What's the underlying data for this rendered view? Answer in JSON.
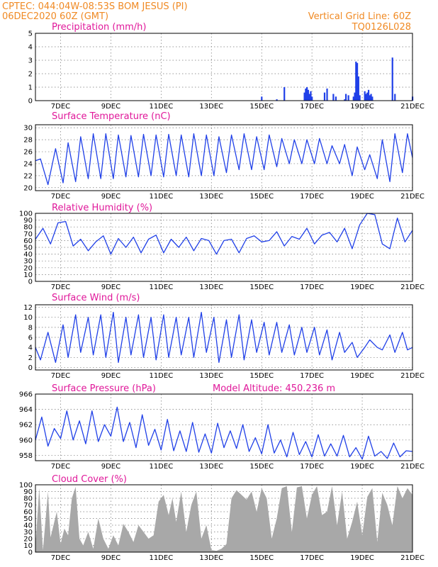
{
  "header": {
    "left_line1": "CPTEC:   044:04W-08:53S   BOM JESUS (PI)",
    "left_line2": "06DEC2020 60Z (GMT)",
    "right_line1": "Vertical Grid Line: 60Z",
    "right_line2": "TQ0126L028"
  },
  "colors": {
    "header": "#f08a24",
    "title": "#e0189a",
    "line": "#2040e8",
    "cloud": "#a8a8a8"
  },
  "x_axis": {
    "labels": [
      "7DEC",
      "9DEC",
      "11DEC",
      "13DEC",
      "15DEC",
      "17DEC",
      "19DEC",
      "21DEC"
    ],
    "label_positions_day": [
      7,
      9,
      11,
      13,
      15,
      17,
      19,
      21
    ],
    "range_day": [
      6.0,
      21.0
    ]
  },
  "chart_data": [
    {
      "type": "bar",
      "title": "Precipitation (mm/h)",
      "ylim": [
        0,
        5
      ],
      "yticks": [
        0,
        1,
        2,
        3,
        4,
        5
      ],
      "x": [
        15.0,
        15.6,
        15.9,
        16.7,
        16.75,
        16.8,
        16.85,
        16.9,
        16.95,
        17.0,
        17.5,
        17.6,
        17.85,
        17.95,
        18.3,
        18.35,
        18.45,
        18.65,
        18.7,
        18.75,
        18.8,
        18.85,
        18.9,
        19.1,
        19.15,
        19.2,
        19.25,
        19.3,
        19.35,
        19.4,
        20.2,
        20.3,
        21.0
      ],
      "values": [
        0.3,
        0.1,
        1.0,
        0.6,
        0.9,
        1.0,
        0.8,
        0.5,
        0.7,
        0.3,
        0.6,
        0.9,
        0.5,
        0.3,
        0.1,
        0.5,
        0.4,
        0.3,
        0.6,
        2.9,
        2.8,
        1.8,
        0.4,
        0.7,
        0.5,
        0.6,
        0.8,
        0.4,
        0.5,
        0.3,
        3.2,
        0.5,
        0.3
      ]
    },
    {
      "type": "line",
      "title": "Surface Temperature (nC)",
      "ylim": [
        19.5,
        30.5
      ],
      "yticks": [
        20,
        22,
        24,
        26,
        28,
        30
      ],
      "x": [
        6.0,
        6.2,
        6.5,
        6.8,
        7.1,
        7.3,
        7.6,
        7.8,
        8.1,
        8.3,
        8.6,
        8.8,
        9.1,
        9.3,
        9.6,
        9.8,
        10.1,
        10.3,
        10.6,
        10.8,
        11.1,
        11.3,
        11.6,
        11.8,
        12.1,
        12.3,
        12.6,
        12.8,
        13.1,
        13.3,
        13.6,
        13.8,
        14.1,
        14.3,
        14.6,
        14.8,
        15.1,
        15.3,
        15.6,
        15.8,
        16.1,
        16.3,
        16.6,
        16.8,
        17.1,
        17.3,
        17.6,
        17.8,
        18.1,
        18.3,
        18.6,
        18.8,
        19.1,
        19.3,
        19.6,
        19.8,
        20.1,
        20.3,
        20.6,
        20.8,
        21.0
      ],
      "values": [
        24.5,
        24.8,
        20.5,
        26.5,
        20.8,
        27.5,
        21.0,
        28.5,
        21.5,
        29.0,
        21.5,
        29.0,
        21.5,
        28.8,
        21.8,
        28.7,
        21.8,
        28.9,
        22.0,
        28.8,
        21.8,
        28.9,
        22.0,
        28.8,
        21.8,
        29.0,
        22.0,
        28.8,
        22.0,
        28.5,
        22.5,
        28.8,
        23.0,
        29.0,
        23.0,
        28.5,
        23.0,
        28.8,
        23.5,
        28.2,
        24.0,
        28.0,
        24.0,
        28.0,
        24.0,
        28.2,
        24.0,
        27.0,
        24.0,
        27.2,
        22.0,
        26.8,
        23.0,
        25.5,
        21.5,
        28.0,
        21.0,
        29.0,
        22.5,
        29.0,
        25.0
      ]
    },
    {
      "type": "line",
      "title": "Relative Humidity (%)",
      "ylim": [
        0,
        100
      ],
      "yticks": [
        0,
        10,
        20,
        30,
        40,
        50,
        60,
        70,
        80,
        90,
        100
      ],
      "x": [
        6.0,
        6.3,
        6.6,
        6.9,
        7.2,
        7.5,
        7.8,
        8.1,
        8.4,
        8.7,
        9.0,
        9.3,
        9.6,
        9.9,
        10.2,
        10.5,
        10.8,
        11.1,
        11.4,
        11.7,
        12.0,
        12.3,
        12.6,
        12.9,
        13.2,
        13.5,
        13.8,
        14.1,
        14.4,
        14.7,
        15.0,
        15.3,
        15.6,
        15.9,
        16.2,
        16.5,
        16.8,
        17.1,
        17.4,
        17.7,
        18.0,
        18.3,
        18.6,
        18.9,
        19.2,
        19.5,
        19.8,
        20.1,
        20.4,
        20.7,
        21.0
      ],
      "values": [
        62,
        78,
        55,
        86,
        88,
        52,
        62,
        45,
        58,
        67,
        40,
        63,
        50,
        65,
        42,
        62,
        68,
        42,
        62,
        50,
        65,
        45,
        63,
        60,
        40,
        60,
        62,
        42,
        63,
        67,
        58,
        60,
        73,
        52,
        66,
        62,
        78,
        55,
        68,
        72,
        58,
        78,
        48,
        83,
        100,
        98,
        55,
        48,
        93,
        58,
        75
      ]
    },
    {
      "type": "line",
      "title": "Surface Wind (m/s)",
      "ylim": [
        -0.5,
        12.5
      ],
      "yticks": [
        0,
        2,
        4,
        6,
        8,
        10,
        12
      ],
      "x": [
        6.0,
        6.2,
        6.5,
        6.8,
        7.1,
        7.3,
        7.6,
        7.8,
        8.1,
        8.3,
        8.6,
        8.8,
        9.1,
        9.3,
        9.6,
        9.8,
        10.1,
        10.3,
        10.6,
        10.8,
        11.1,
        11.3,
        11.6,
        11.8,
        12.1,
        12.3,
        12.6,
        12.8,
        13.1,
        13.3,
        13.6,
        13.8,
        14.1,
        14.3,
        14.6,
        14.8,
        15.1,
        15.3,
        15.6,
        15.8,
        16.1,
        16.3,
        16.6,
        16.8,
        17.1,
        17.3,
        17.6,
        17.8,
        18.1,
        18.3,
        18.6,
        18.8,
        19.1,
        19.3,
        19.6,
        19.8,
        20.1,
        20.3,
        20.6,
        20.8,
        21.0
      ],
      "values": [
        4.0,
        1.5,
        7.0,
        1.0,
        8.5,
        2.0,
        10.5,
        3.0,
        10.0,
        2.5,
        10.5,
        2.0,
        11.0,
        1.0,
        10.0,
        2.5,
        10.5,
        2.0,
        10.0,
        1.5,
        10.5,
        2.0,
        10.0,
        2.5,
        10.0,
        2.0,
        11.0,
        3.0,
        10.0,
        1.0,
        9.5,
        2.0,
        10.5,
        1.5,
        9.5,
        3.0,
        9.0,
        2.5,
        9.0,
        3.0,
        8.5,
        2.5,
        8.0,
        3.0,
        8.0,
        2.5,
        7.5,
        1.5,
        7.0,
        3.0,
        5.0,
        2.0,
        4.0,
        5.5,
        4.0,
        3.5,
        6.5,
        3.0,
        7.0,
        3.5,
        4.0
      ]
    },
    {
      "type": "line",
      "title": "Surface Pressure (hPa)",
      "annotation": "Model Altitude: 450.236  m",
      "ylim": [
        957.3,
        966.0
      ],
      "yticks": [
        958,
        960,
        962,
        964,
        966
      ],
      "x": [
        6.0,
        6.25,
        6.5,
        6.75,
        7.0,
        7.25,
        7.5,
        7.75,
        8.0,
        8.25,
        8.5,
        8.75,
        9.0,
        9.25,
        9.5,
        9.75,
        10.0,
        10.25,
        10.5,
        10.75,
        11.0,
        11.25,
        11.5,
        11.75,
        12.0,
        12.25,
        12.5,
        12.75,
        13.0,
        13.25,
        13.5,
        13.75,
        14.0,
        14.25,
        14.5,
        14.75,
        15.0,
        15.25,
        15.5,
        15.75,
        16.0,
        16.25,
        16.5,
        16.75,
        17.0,
        17.25,
        17.5,
        17.75,
        18.0,
        18.25,
        18.5,
        18.75,
        19.0,
        19.25,
        19.5,
        19.75,
        20.0,
        20.25,
        20.5,
        20.75,
        21.0
      ],
      "values": [
        960.0,
        963.0,
        959.2,
        961.5,
        960.2,
        963.8,
        960.0,
        962.5,
        959.5,
        963.8,
        959.8,
        962.0,
        960.5,
        964.3,
        959.8,
        962.3,
        959.0,
        963.3,
        959.3,
        961.4,
        958.7,
        962.7,
        958.6,
        961.2,
        958.5,
        962.3,
        958.4,
        960.8,
        958.3,
        962.2,
        959.0,
        961.2,
        958.9,
        962.0,
        958.5,
        960.3,
        958.2,
        962.0,
        958.3,
        960.0,
        957.8,
        961.0,
        958.1,
        959.8,
        957.8,
        960.7,
        957.9,
        959.5,
        957.9,
        960.6,
        957.8,
        959.0,
        957.5,
        960.5,
        957.9,
        958.5,
        957.6,
        959.6,
        957.8,
        958.6,
        958.5
      ]
    },
    {
      "type": "area",
      "title": "Cloud Cover (%)",
      "ylim": [
        0,
        100
      ],
      "yticks": [
        0,
        10,
        20,
        30,
        40,
        50,
        60,
        70,
        80,
        90,
        100
      ],
      "x": [
        6.0,
        6.15,
        6.3,
        6.5,
        6.6,
        6.85,
        7.0,
        7.15,
        7.3,
        7.45,
        7.6,
        7.75,
        7.9,
        8.1,
        8.3,
        8.5,
        8.7,
        8.9,
        9.1,
        9.3,
        9.5,
        9.7,
        9.9,
        10.1,
        10.3,
        10.5,
        10.7,
        10.9,
        11.1,
        11.3,
        11.45,
        11.6,
        11.8,
        12.0,
        12.2,
        12.4,
        12.6,
        12.8,
        13.0,
        13.2,
        13.4,
        13.6,
        13.8,
        14.0,
        14.2,
        14.4,
        14.6,
        14.8,
        15.0,
        15.2,
        15.4,
        15.6,
        15.8,
        16.0,
        16.2,
        16.4,
        16.6,
        16.8,
        17.0,
        17.2,
        17.4,
        17.6,
        17.8,
        18.0,
        18.2,
        18.4,
        18.6,
        18.8,
        19.0,
        19.2,
        19.4,
        19.6,
        19.8,
        20.0,
        20.2,
        20.4,
        20.6,
        20.8,
        21.0
      ],
      "values": [
        8,
        95,
        3,
        90,
        22,
        60,
        12,
        35,
        25,
        80,
        97,
        20,
        10,
        30,
        5,
        50,
        20,
        5,
        25,
        10,
        42,
        30,
        15,
        40,
        30,
        20,
        25,
        75,
        85,
        55,
        80,
        45,
        90,
        30,
        70,
        90,
        20,
        40,
        3,
        2,
        5,
        12,
        80,
        92,
        85,
        78,
        90,
        60,
        95,
        80,
        20,
        50,
        95,
        98,
        30,
        96,
        98,
        50,
        85,
        98,
        55,
        60,
        98,
        40,
        90,
        20,
        45,
        75,
        25,
        82,
        95,
        15,
        88,
        70,
        40,
        98,
        80,
        95,
        85
      ]
    }
  ]
}
